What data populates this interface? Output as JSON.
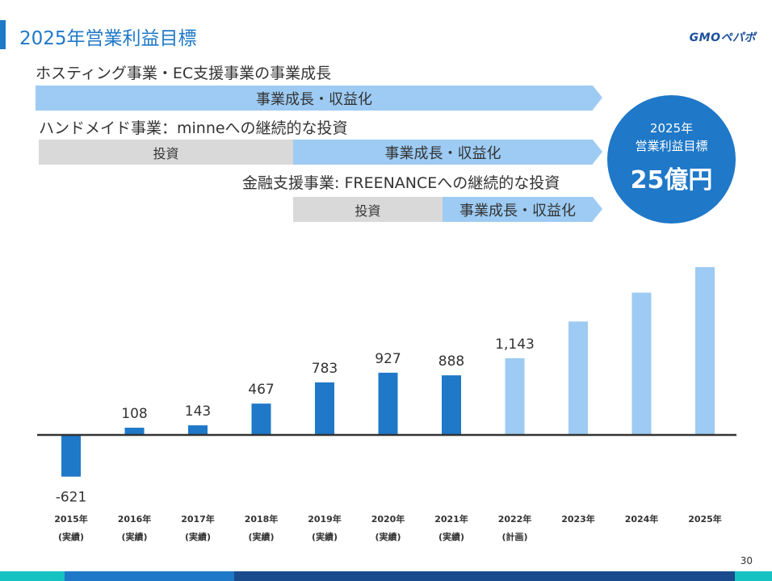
{
  "header": {
    "title": "2025年営業利益目標",
    "logo": "GMOペパボ"
  },
  "segments": {
    "hosting": {
      "label": "ホスティング事業・EC支援事業の事業成長",
      "growth": "事業成長・収益化"
    },
    "handmade": {
      "label": "ハンドメイド事業：minneへの継続的な投資",
      "invest": "投資",
      "growth": "事業成長・収益化"
    },
    "fintech": {
      "label": "金融支援事業: FREENANCEへの継続的な投資",
      "invest": "投資",
      "growth": "事業成長・収益化"
    }
  },
  "target": {
    "year": "2025年",
    "label": "営業利益目標",
    "value": "25億円"
  },
  "colors": {
    "accent": "#1f78c8",
    "actual_bar": "#1f78c8",
    "plan_bar": "#9dcbf3",
    "invest_gray": "#d9d9d9"
  },
  "chart_data": {
    "type": "bar",
    "categories": [
      "2015年",
      "2016年",
      "2017年",
      "2018年",
      "2019年",
      "2020年",
      "2021年",
      "2022年",
      "2023年",
      "2024年",
      "2025年"
    ],
    "sublabels": [
      "(実績)",
      "(実績)",
      "(実績)",
      "(実績)",
      "(実績)",
      "(実績)",
      "(実績)",
      "(計画)",
      "",
      "",
      ""
    ],
    "values": [
      -621,
      108,
      143,
      467,
      783,
      927,
      888,
      1143,
      1690,
      2120,
      2500
    ],
    "data_labels": [
      "-621",
      "108",
      "143",
      "467",
      "783",
      "927",
      "888",
      "1,143",
      "",
      "",
      ""
    ],
    "kind": [
      "actual",
      "actual",
      "actual",
      "actual",
      "actual",
      "actual",
      "actual",
      "plan",
      "plan",
      "plan",
      "plan"
    ],
    "title": "",
    "xlabel": "",
    "ylabel": "",
    "ylim": [
      -700,
      2600
    ],
    "grid": false,
    "legend": "none"
  },
  "page_number": "30"
}
